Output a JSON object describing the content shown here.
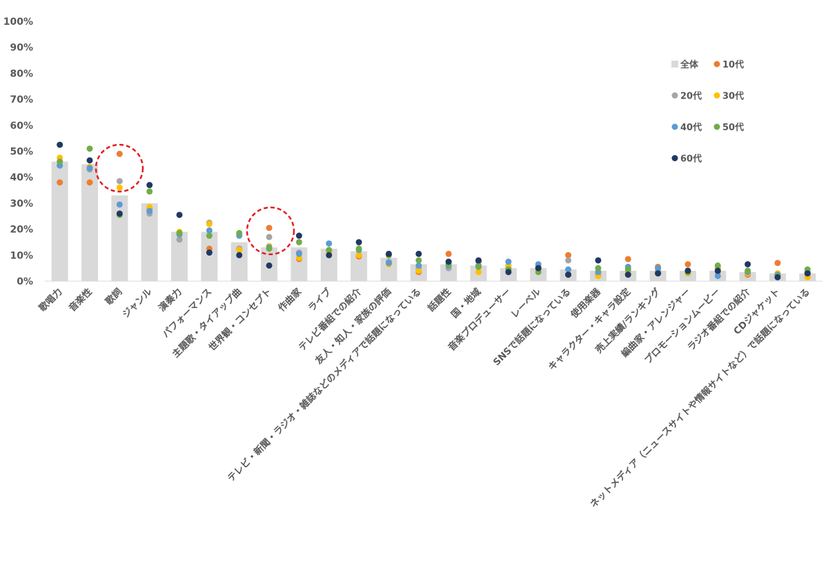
{
  "chart_data": {
    "type": "bar",
    "title": "",
    "xlabel": "",
    "ylabel": "",
    "ylim": [
      0,
      100
    ],
    "y_tick_labels": [
      "0%",
      "10%",
      "20%",
      "30%",
      "40%",
      "50%",
      "60%",
      "70%",
      "80%",
      "90%",
      "100%"
    ],
    "grid": false,
    "legend_position": "top-right",
    "categories": [
      "歌唱力",
      "音楽性",
      "歌詞",
      "ジャンル",
      "演奏力",
      "パフォーマンス",
      "主題歌・タイアップ曲",
      "世界観・コンセプト",
      "作曲家",
      "ライブ",
      "テレビ番組での紹介",
      "友人・知人・家族の評価",
      "テレビ・新聞・ラジオ・雑誌などのメディアで話題になっている",
      "話題性",
      "国・地域",
      "音楽プロデューサー",
      "レーベル",
      "SNSで話題になっている",
      "使用楽器",
      "キャラクター・キャラ設定",
      "売上実績/ランキング",
      "編曲家・アレンジャー",
      "プロモーションムービー",
      "ラジオ番組での紹介",
      "CDジャケット",
      "ネットメディア（ニュースサイトや情報サイトなど）で話題になっている"
    ],
    "bar_series": {
      "name": "全体",
      "color": "#d9d9d9",
      "values": [
        46,
        45,
        33,
        30,
        19,
        19,
        15,
        13,
        13,
        12.5,
        11.5,
        9,
        6.5,
        6.5,
        6,
        5,
        5,
        4.5,
        4,
        4,
        4,
        4,
        4,
        3.5,
        3,
        3
      ]
    },
    "series": [
      {
        "name": "10代",
        "color": "#ed7d31",
        "values": [
          38,
          38,
          49,
          28,
          18.5,
          12.5,
          12.5,
          20.5,
          8.5,
          11,
          9.5,
          10,
          3.5,
          10.5,
          7.5,
          5,
          5.5,
          10,
          2.5,
          8.5,
          5.5,
          6.5,
          5,
          2.5,
          7,
          2
        ]
      },
      {
        "name": "20代",
        "color": "#a5a5a5",
        "values": [
          44.5,
          43,
          38.5,
          26,
          16,
          22.5,
          12.5,
          17,
          11,
          11.5,
          10,
          7.5,
          5,
          5,
          6,
          6,
          5,
          8,
          2,
          3.5,
          4,
          3,
          3.5,
          3,
          2.5,
          3
        ]
      },
      {
        "name": "30代",
        "color": "#ffc000",
        "values": [
          47.5,
          44,
          36,
          28.5,
          19,
          22,
          12,
          13.5,
          9,
          11,
          10,
          6.5,
          4,
          7,
          3.5,
          6,
          4.5,
          2.5,
          2,
          3,
          3,
          3,
          4.5,
          3,
          3,
          1.5
        ]
      },
      {
        "name": "40代",
        "color": "#5b9bd5",
        "values": [
          44.5,
          43.5,
          29.5,
          27,
          18,
          19.5,
          17.5,
          13,
          10.5,
          14.5,
          12,
          7,
          6,
          6,
          6,
          7.5,
          6.5,
          4.5,
          3.5,
          5.5,
          5,
          4,
          2,
          3.5,
          2.5,
          3.5
        ]
      },
      {
        "name": "50代",
        "color": "#70ad47",
        "values": [
          46,
          51,
          25.5,
          34.5,
          18.5,
          17.5,
          18.5,
          12.5,
          15,
          12,
          12.5,
          10,
          8,
          6.5,
          5.5,
          4.5,
          3.5,
          2.5,
          5,
          4.5,
          3,
          3.5,
          6,
          4,
          2,
          4.5
        ]
      },
      {
        "name": "60代",
        "color": "#203864",
        "values": [
          52.5,
          46.5,
          26,
          37,
          25.5,
          11,
          10,
          6,
          17.5,
          10,
          15,
          10.5,
          10.5,
          7.5,
          8,
          3.5,
          5,
          2.5,
          8,
          2.5,
          3,
          4,
          4,
          6.5,
          1.5,
          3
        ]
      }
    ]
  }
}
